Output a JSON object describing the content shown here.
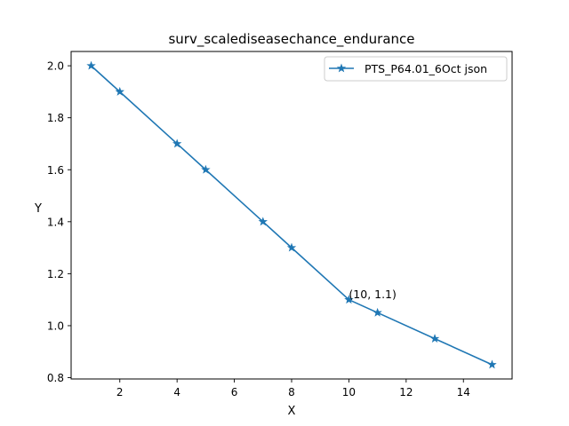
{
  "chart_data": {
    "type": "line",
    "title": "surv_scalediseasechance_endurance",
    "xlabel": "X",
    "ylabel": "Y",
    "xlim": [
      0.3,
      15.7
    ],
    "ylim": [
      0.795,
      2.055
    ],
    "xticks": [
      2,
      4,
      6,
      8,
      10,
      12,
      14
    ],
    "yticks": [
      0.8,
      1.0,
      1.2,
      1.4,
      1.6,
      1.8,
      2.0
    ],
    "xtick_labels": [
      "2",
      "4",
      "6",
      "8",
      "10",
      "12",
      "14"
    ],
    "ytick_labels": [
      "0.8",
      "1.0",
      "1.2",
      "1.4",
      "1.6",
      "1.8",
      "2.0"
    ],
    "grid": false,
    "legend_position": "top-right",
    "series": [
      {
        "name": "PTS_P64.01_6Oct json",
        "color": "#1f77b4",
        "marker": "star",
        "x": [
          1,
          2,
          4,
          5,
          7,
          8,
          10,
          11,
          13,
          15
        ],
        "y": [
          2.0,
          1.9,
          1.7,
          1.6,
          1.4,
          1.3,
          1.1,
          1.05,
          0.95,
          0.85
        ]
      }
    ],
    "annotations": [
      {
        "x": 10,
        "y": 1.1,
        "text": "(10, 1.1)"
      }
    ]
  }
}
